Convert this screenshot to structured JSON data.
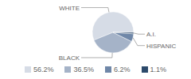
{
  "chart_data": {
    "type": "pie",
    "categories": [
      "WHITE",
      "BLACK",
      "HISPANIC",
      "A.I."
    ],
    "values": [
      56.2,
      36.5,
      6.2,
      1.1
    ],
    "value_labels": [
      "56.2%",
      "36.5%",
      "6.2%",
      "1.1%"
    ],
    "colors": [
      "#d6dce6",
      "#a5b3c8",
      "#6f87a8",
      "#2c4a6b"
    ],
    "legend": "bottom"
  }
}
